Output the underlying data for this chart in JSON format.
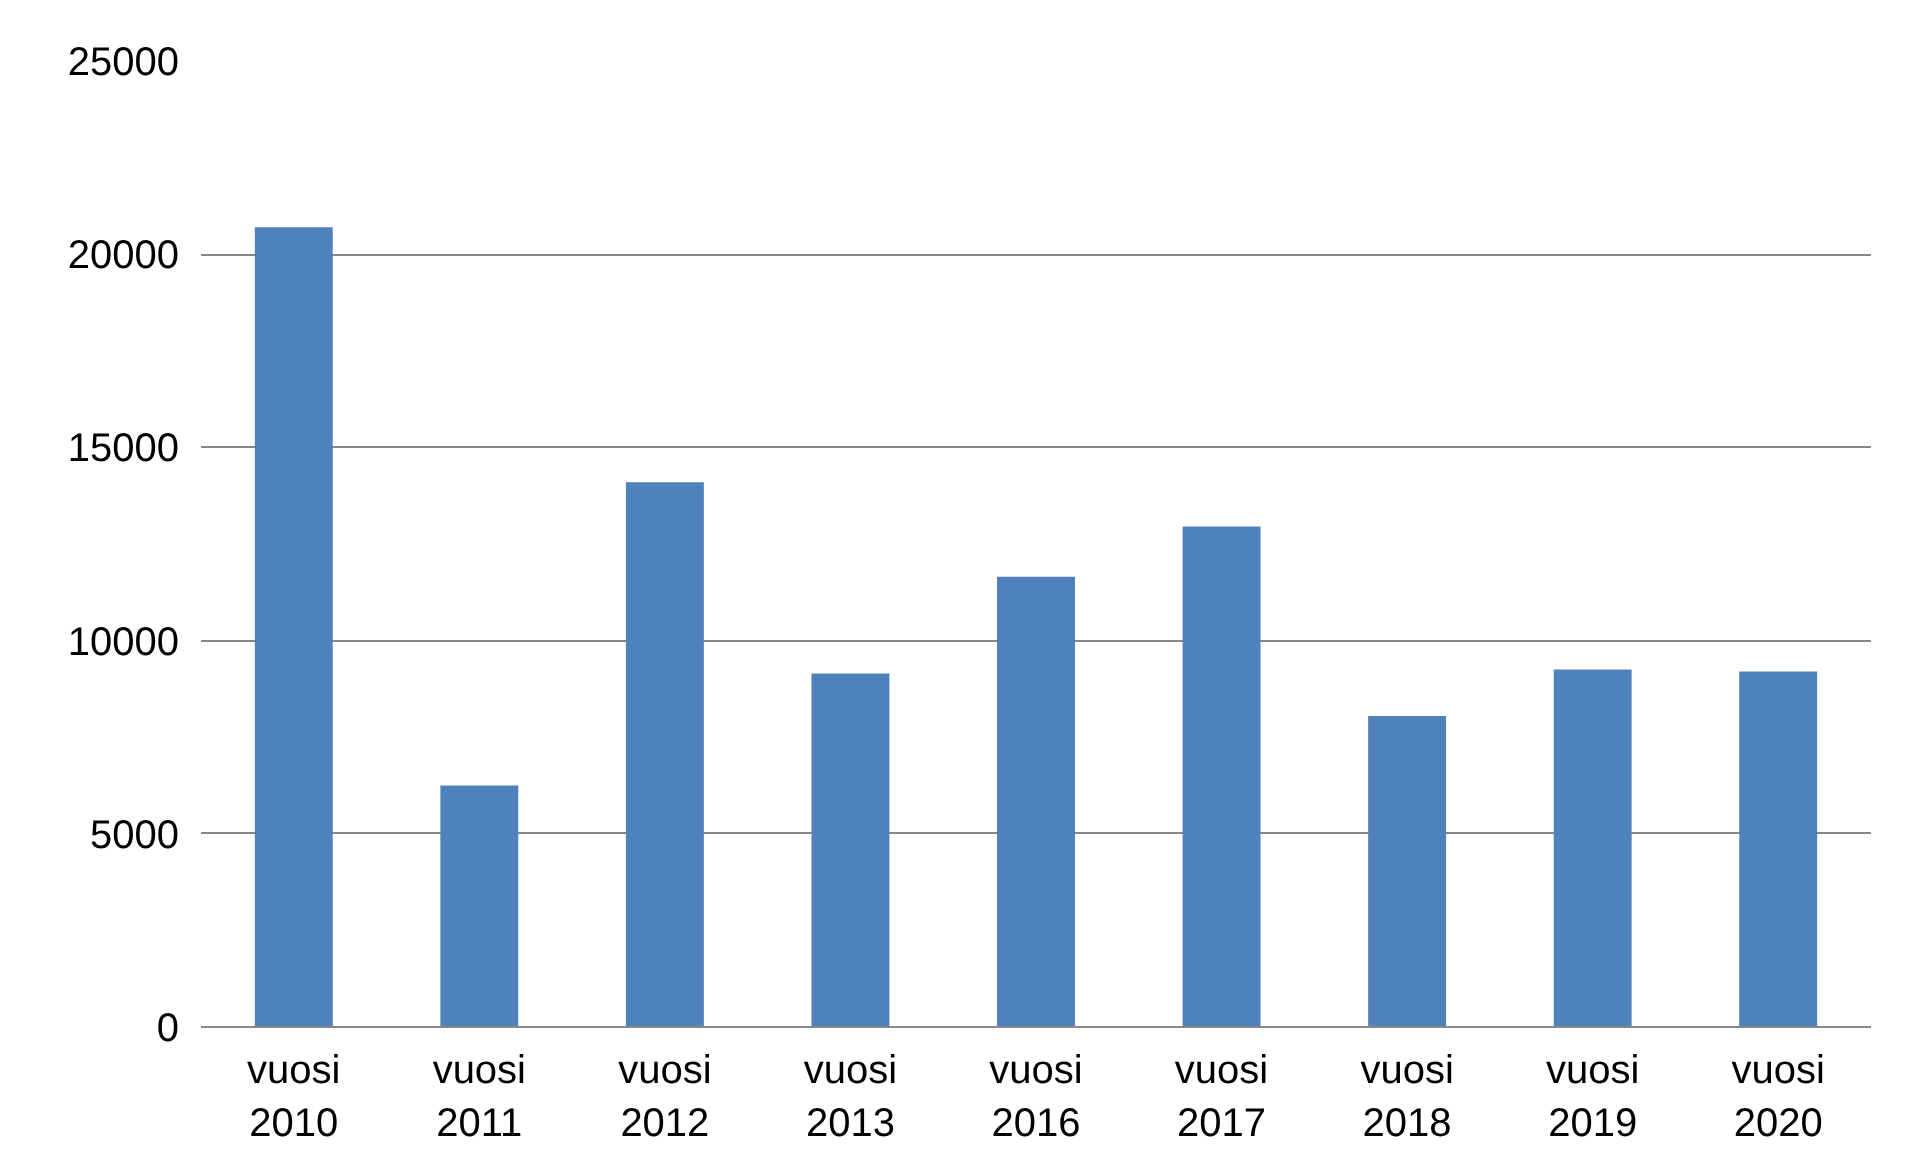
{
  "chart_data": {
    "type": "bar",
    "categories": [
      "vuosi 2010",
      "vuosi 2011",
      "vuosi 2012",
      "vuosi 2013",
      "vuosi 2016",
      "vuosi 2017",
      "vuosi 2018",
      "vuosi 2019",
      "vuosi 2020"
    ],
    "values": [
      20700,
      6250,
      14100,
      9150,
      11650,
      12950,
      8050,
      9250,
      9200
    ],
    "color": "#4f81bd",
    "ylim": [
      0,
      25000
    ],
    "yticks": [
      0,
      5000,
      10000,
      15000,
      20000,
      25000
    ],
    "grid": "y"
  }
}
